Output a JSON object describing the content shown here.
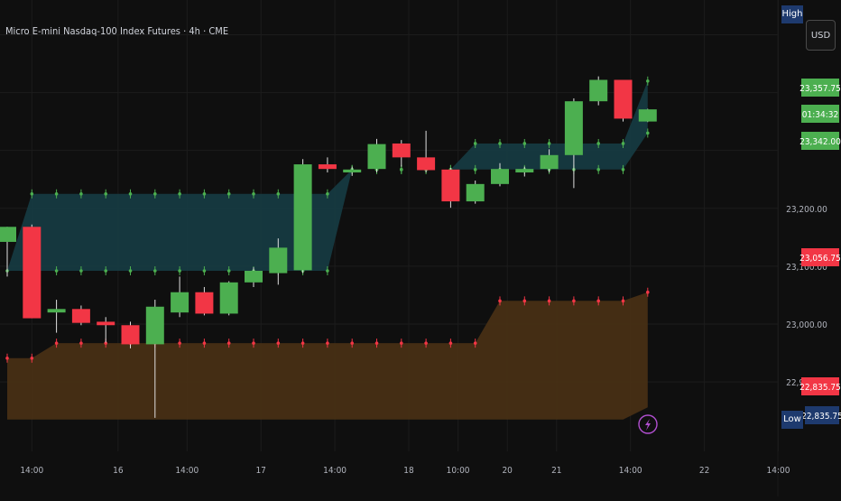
{
  "header": {
    "title": "Micro E-mini Nasdaq-100 Index Futures · 4h · CME",
    "currency_button": "USD",
    "high_tag": "High",
    "low_tag": "Low"
  },
  "colors": {
    "background": "#0f0f0f",
    "bull": "#4caf50",
    "bear": "#f23645",
    "upper_band_fill": "#163c44",
    "lower_band_fill": "#4a3115",
    "upper_marker": "#4caf50",
    "lower_marker": "#f23645",
    "grid": "#1c1c1c",
    "axis_text": "#b2b5be",
    "badge_low": "#1e3a6e"
  },
  "chart_data": {
    "type": "candlestick",
    "title": "Micro E-mini Nasdaq-100 Index Futures · 4h · CME",
    "ylim": [
      22780,
      23560
    ],
    "grid": true,
    "y_ticks": [
      "23,200.00",
      "23,100.00",
      "23,000.00",
      "22,900.00"
    ],
    "y_tick_values": [
      23200,
      23100,
      23000,
      22900
    ],
    "x_ticks": [
      "14:00",
      "16",
      "14:00",
      "17",
      "14:00",
      "18",
      "10:00",
      "20",
      "21",
      "14:00",
      "22",
      "14:00"
    ],
    "x_tick_bar_index": [
      1,
      4.5,
      7.3,
      10.3,
      13.3,
      16.3,
      18.3,
      20.3,
      22.3,
      25.3,
      28.3,
      31.3
    ],
    "candles": [
      {
        "o": 23142,
        "h": 23168,
        "l": 23082,
        "c": 23168
      },
      {
        "o": 23168,
        "h": 23172,
        "l": 23010,
        "c": 23010
      },
      {
        "o": 23020,
        "h": 23042,
        "l": 22985,
        "c": 23026
      },
      {
        "o": 23026,
        "h": 23032,
        "l": 22998,
        "c": 23002
      },
      {
        "o": 23004,
        "h": 23012,
        "l": 22968,
        "c": 22998
      },
      {
        "o": 22998,
        "h": 23004,
        "l": 22958,
        "c": 22965
      },
      {
        "o": 22965,
        "h": 23042,
        "l": 22838,
        "c": 23030
      },
      {
        "o": 23020,
        "h": 23082,
        "l": 23012,
        "c": 23055
      },
      {
        "o": 23055,
        "h": 23064,
        "l": 23015,
        "c": 23018
      },
      {
        "o": 23018,
        "h": 23074,
        "l": 23015,
        "c": 23072
      },
      {
        "o": 23072,
        "h": 23098,
        "l": 23064,
        "c": 23092
      },
      {
        "o": 23088,
        "h": 23148,
        "l": 23068,
        "c": 23132
      },
      {
        "o": 23093,
        "h": 23285,
        "l": 23088,
        "c": 23276
      },
      {
        "o": 23276,
        "h": 23288,
        "l": 23262,
        "c": 23268
      },
      {
        "o": 23262,
        "h": 23272,
        "l": 23256,
        "c": 23267
      },
      {
        "o": 23268,
        "h": 23320,
        "l": 23262,
        "c": 23311
      },
      {
        "o": 23312,
        "h": 23318,
        "l": 23272,
        "c": 23288
      },
      {
        "o": 23288,
        "h": 23334,
        "l": 23262,
        "c": 23266
      },
      {
        "o": 23267,
        "h": 23270,
        "l": 23201,
        "c": 23212
      },
      {
        "o": 23212,
        "h": 23248,
        "l": 23208,
        "c": 23242
      },
      {
        "o": 23242,
        "h": 23278,
        "l": 23238,
        "c": 23268
      },
      {
        "o": 23262,
        "h": 23272,
        "l": 23255,
        "c": 23268
      },
      {
        "o": 23268,
        "h": 23302,
        "l": 23262,
        "c": 23292
      },
      {
        "o": 23292,
        "h": 23390,
        "l": 23235,
        "c": 23385
      },
      {
        "o": 23385,
        "h": 23428,
        "l": 23378,
        "c": 23422
      },
      {
        "o": 23422,
        "h": 23422,
        "l": 23350,
        "c": 23355
      },
      {
        "o": 23350,
        "h": 23372,
        "l": 23349,
        "c": 23371
      }
    ],
    "upper_band": {
      "top": [
        null,
        23225,
        23225,
        23225,
        23225,
        23225,
        23225,
        23225,
        23225,
        23225,
        23225,
        23225,
        23225,
        23225,
        23267,
        23267,
        23267,
        23267,
        23267,
        23312,
        23312,
        23312,
        23312,
        23312,
        23312,
        23312,
        23420
      ],
      "bottom": [
        23092,
        23092,
        23092,
        23092,
        23092,
        23092,
        23092,
        23092,
        23092,
        23092,
        23092,
        23092,
        23092,
        23092,
        23267,
        23267,
        23267,
        23267,
        23267,
        23267,
        23267,
        23267,
        23267,
        23267,
        23267,
        23267,
        23330
      ]
    },
    "lower_band": {
      "top": [
        22941,
        22941,
        22967,
        22967,
        22967,
        22967,
        22967,
        22967,
        22967,
        22967,
        22967,
        22967,
        22967,
        22967,
        22967,
        22967,
        22967,
        22967,
        22967,
        22967,
        23040,
        23040,
        23040,
        23040,
        23040,
        23040,
        23055
      ],
      "bottom": [
        22835,
        22835,
        22835,
        22835,
        22835,
        22835,
        22835,
        22835,
        22835,
        22835,
        22835,
        22835,
        22835,
        22835,
        22835,
        22835,
        22835,
        22835,
        22835,
        22835,
        22835,
        22835,
        22835,
        22835,
        22835,
        22835,
        22856
      ]
    },
    "price_badges": [
      {
        "value": "23,357.75",
        "price": 23357.75,
        "color": "#4caf50",
        "text_color": "#ffffff"
      },
      {
        "value": "01:34:32",
        "price": 23350,
        "color": "#4caf50",
        "text_color": "#ffffff"
      },
      {
        "value": "23,342.00",
        "price": 23342,
        "color": "#4caf50",
        "text_color": "#ffffff"
      },
      {
        "value": "23,056.75",
        "price": 23056.75,
        "color": "#f23645",
        "text_color": "#ffffff"
      },
      {
        "value": "22,835.75",
        "price": 22835.75,
        "color": "#f23645",
        "text_color": "#ffffff"
      },
      {
        "value": "22,835.75",
        "price": 22835.75,
        "color": "#1e3a6e",
        "text_color": "#ffffff",
        "tag": "Low"
      }
    ],
    "event_icon": "lightning-icon"
  }
}
